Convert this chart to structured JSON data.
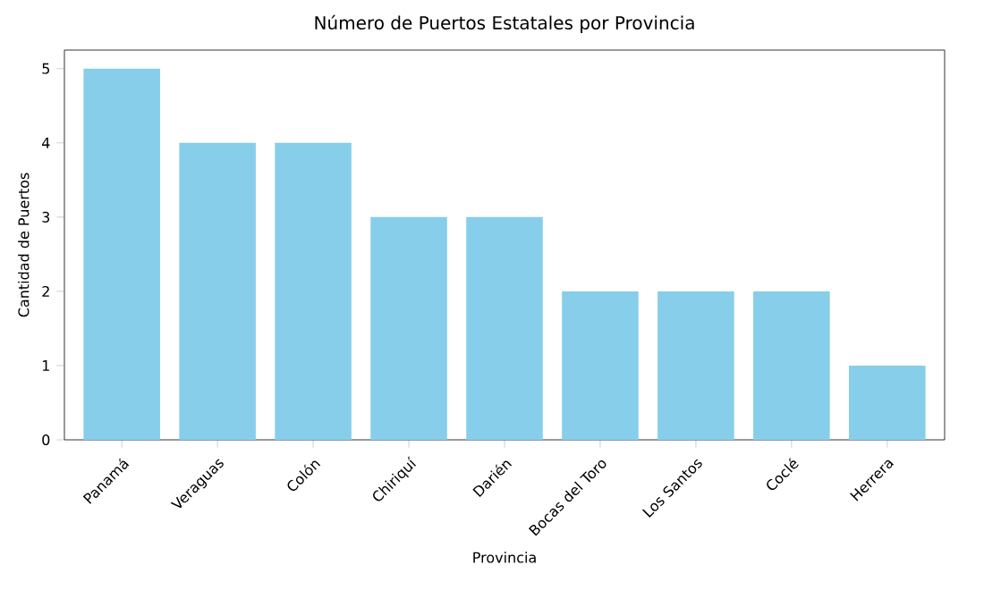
{
  "chart_data": {
    "type": "bar",
    "title": "Número de Puertos Estatales por Provincia",
    "xlabel": "Provincia",
    "ylabel": "Cantidad de Puertos",
    "categories": [
      "Panamá",
      "Veraguas",
      "Colón",
      "Chiriquí",
      "Darién",
      "Bocas del Toro",
      "Los Santos",
      "Coclé",
      "Herrera"
    ],
    "values": [
      5,
      4,
      4,
      3,
      3,
      2,
      2,
      2,
      1
    ],
    "color": "#87ceeb",
    "ylim": [
      0,
      5.25
    ],
    "yticks": [
      0,
      1,
      2,
      3,
      4,
      5
    ],
    "grid": false
  }
}
